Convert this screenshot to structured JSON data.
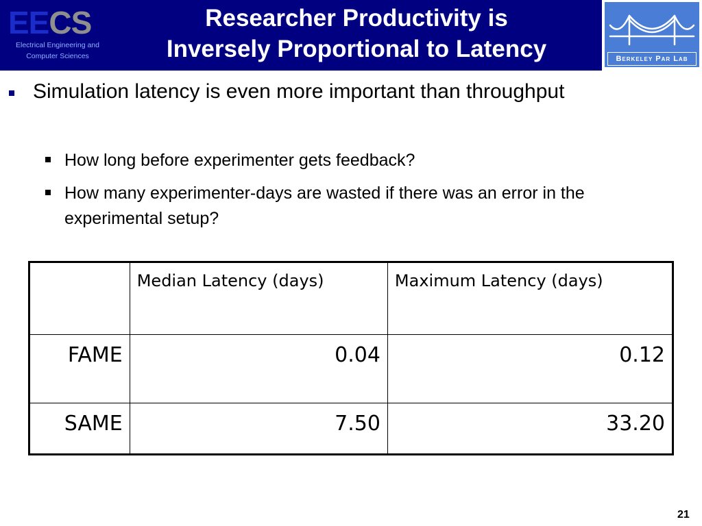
{
  "header": {
    "logo_left": {
      "ee": "EE",
      "cs": "CS",
      "line1": "Electrical Engineering and",
      "line2": "Computer Sciences"
    },
    "title_line1": "Researcher Productivity is",
    "title_line2": "Inversely Proportional to Latency",
    "logo_right": {
      "label": "Berkeley Par Lab"
    }
  },
  "bullets": {
    "main": "Simulation latency is even more important than throughput",
    "sub": [
      "How long before experimenter gets feedback?",
      "How many experimenter-days are wasted if there was an error in the experimental setup?"
    ]
  },
  "table": {
    "headers": [
      "",
      "Median Latency (days)",
      "Maximum Latency (days)"
    ],
    "rows": [
      [
        "FAME",
        "0.04",
        "0.12"
      ],
      [
        "SAME",
        "7.50",
        "33.20"
      ]
    ]
  },
  "colors": {
    "header_bg": "#000080",
    "bpl_bg": "#4a7dd6",
    "ee": "#1a2cc9",
    "cs": "#8e8e8e"
  },
  "page_number": "21"
}
